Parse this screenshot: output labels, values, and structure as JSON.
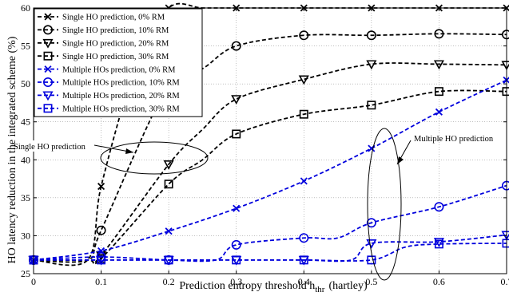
{
  "chart_data": {
    "type": "line",
    "xlabel": "Prediction entropy threshold h",
    "xlabel_sub": "thr",
    "xlabel_unit": "(hartley)",
    "ylabel": "HO latency reduction in the integrated scheme (%)",
    "xlim": [
      0,
      0.7
    ],
    "ylim": [
      25,
      60
    ],
    "x_ticks": [
      "0",
      "0.1",
      "0.2",
      "0.3",
      "0.4",
      "0.5",
      "0.6",
      "0.7"
    ],
    "y_ticks": [
      "25",
      "30",
      "35",
      "40",
      "45",
      "50",
      "55",
      "60"
    ],
    "grid": true,
    "legend_position": "top-left",
    "annotations": [
      {
        "text": "Single HO prediction"
      },
      {
        "text": "Multiple HO prediction"
      }
    ],
    "series": [
      {
        "name": "Single HO prediction, 0% RM",
        "color": "#000000",
        "marker": "x",
        "x": [
          0,
          0.08,
          0.1,
          0.15,
          0.2,
          0.25,
          0.3,
          0.4,
          0.5,
          0.6,
          0.7
        ],
        "y": [
          26.8,
          26.8,
          36.5,
          52,
          60,
          60,
          60,
          60,
          60,
          60,
          60
        ]
      },
      {
        "name": "Single HO prediction, 10% RM",
        "color": "#000000",
        "marker": "circle",
        "x": [
          0,
          0.08,
          0.1,
          0.2,
          0.25,
          0.3,
          0.4,
          0.5,
          0.6,
          0.7
        ],
        "y": [
          26.8,
          26.8,
          30.7,
          50,
          52,
          55,
          56.4,
          56.4,
          56.6,
          56.5
        ]
      },
      {
        "name": "Single HO prediction, 20% RM",
        "color": "#000000",
        "marker": "triangle-down",
        "x": [
          0,
          0.08,
          0.1,
          0.2,
          0.25,
          0.3,
          0.4,
          0.5,
          0.6,
          0.7
        ],
        "y": [
          26.8,
          26.8,
          27.4,
          39.4,
          44,
          48,
          50.6,
          52.6,
          52.6,
          52.5
        ]
      },
      {
        "name": "Single HO prediction, 30% RM",
        "color": "#000000",
        "marker": "square",
        "x": [
          0,
          0.08,
          0.1,
          0.2,
          0.25,
          0.3,
          0.4,
          0.5,
          0.6,
          0.7
        ],
        "y": [
          26.8,
          26.8,
          27,
          36.8,
          40,
          43.4,
          46,
          47.2,
          49,
          49
        ]
      },
      {
        "name": "Multiple HOs prediction, 0% RM",
        "color": "#0000dd",
        "marker": "x",
        "x": [
          0,
          0.1,
          0.2,
          0.3,
          0.4,
          0.5,
          0.6,
          0.7
        ],
        "y": [
          26.8,
          28,
          30.6,
          33.6,
          37.2,
          41.5,
          46.3,
          50.5
        ]
      },
      {
        "name": "Multiple HOs prediction, 10% RM",
        "color": "#0000dd",
        "marker": "circle",
        "x": [
          0,
          0.1,
          0.2,
          0.27,
          0.3,
          0.4,
          0.45,
          0.5,
          0.6,
          0.7
        ],
        "y": [
          26.8,
          27.2,
          26.8,
          26.8,
          28.8,
          29.7,
          29.7,
          31.7,
          33.8,
          36.6
        ]
      },
      {
        "name": "Multiple HOs prediction, 20% RM",
        "color": "#0000dd",
        "marker": "triangle-down",
        "x": [
          0,
          0.1,
          0.2,
          0.3,
          0.4,
          0.47,
          0.5,
          0.6,
          0.7
        ],
        "y": [
          26.8,
          26.8,
          26.8,
          26.8,
          26.8,
          26.8,
          29,
          29.2,
          30.1
        ]
      },
      {
        "name": "Multiple HOs prediction, 30% RM",
        "color": "#0000dd",
        "marker": "square",
        "x": [
          0,
          0.1,
          0.2,
          0.3,
          0.4,
          0.5,
          0.55,
          0.6,
          0.7
        ],
        "y": [
          26.8,
          26.8,
          26.8,
          26.8,
          26.8,
          26.8,
          28.5,
          28.9,
          29
        ]
      }
    ]
  }
}
